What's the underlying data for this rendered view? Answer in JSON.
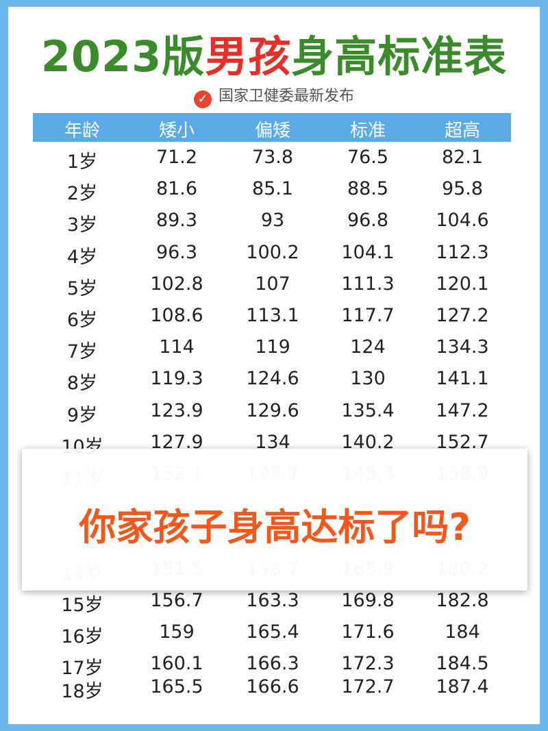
{
  "header": {
    "title_prefix": "2023版",
    "title_highlight": "男孩",
    "title_suffix": "身高标准表",
    "subtitle": "国家卫健委最新发布"
  },
  "table": {
    "columns": [
      "年龄",
      "矮小",
      "偏矮",
      "标准",
      "超高"
    ],
    "rows": [
      [
        "1岁",
        "71.2",
        "73.8",
        "76.5",
        "82.1"
      ],
      [
        "2岁",
        "81.6",
        "85.1",
        "88.5",
        "95.8"
      ],
      [
        "3岁",
        "89.3",
        "93",
        "96.8",
        "104.6"
      ],
      [
        "4岁",
        "96.3",
        "100.2",
        "104.1",
        "112.3"
      ],
      [
        "5岁",
        "102.8",
        "107",
        "111.3",
        "120.1"
      ],
      [
        "6岁",
        "108.6",
        "113.1",
        "117.7",
        "127.2"
      ],
      [
        "7岁",
        "114",
        "119",
        "124",
        "134.3"
      ],
      [
        "8岁",
        "119.3",
        "124.6",
        "130",
        "141.1"
      ],
      [
        "9岁",
        "123.9",
        "129.6",
        "135.4",
        "147.2"
      ],
      [
        "10岁",
        "127.9",
        "134",
        "140.2",
        "152.7"
      ],
      [
        "11岁",
        "132.1",
        "138.7",
        "145.3",
        "158.9"
      ]
    ],
    "rows_after_banner": [
      [
        "14岁",
        "151.5",
        "158.7",
        "165.9",
        "180.2"
      ],
      [
        "15岁",
        "156.7",
        "163.3",
        "169.8",
        "182.8"
      ],
      [
        "16岁",
        "159",
        "165.4",
        "171.6",
        "184"
      ],
      [
        "17岁",
        "160.1",
        "166.3",
        "172.3",
        "184.5"
      ],
      [
        "18岁",
        "165.5",
        "166.6",
        "172.7",
        "187.4"
      ]
    ]
  },
  "banner": {
    "text": "你家孩子身高达标了吗?"
  }
}
